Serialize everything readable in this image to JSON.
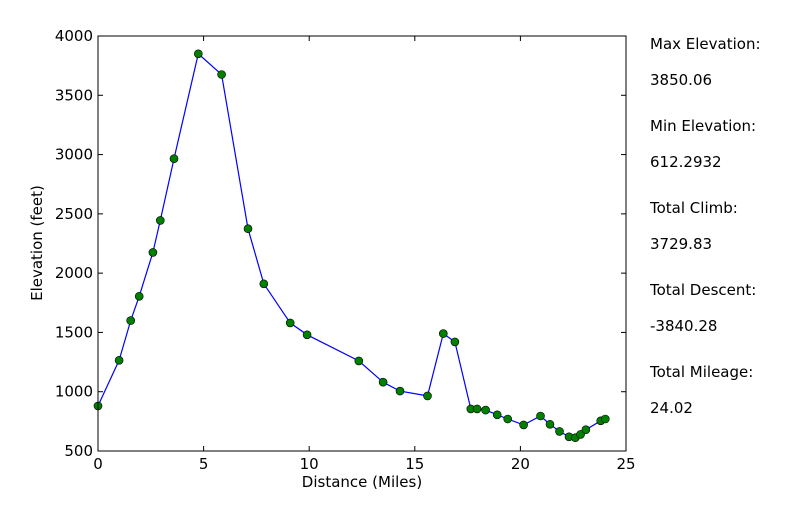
{
  "chart_data": {
    "type": "line",
    "title": "",
    "xlabel": "Distance (Miles)",
    "ylabel": "Elevation (feet)",
    "xlim": [
      0,
      25
    ],
    "ylim": [
      500,
      4000
    ],
    "x_ticks": [
      "0",
      "5",
      "10",
      "15",
      "20",
      "25"
    ],
    "y_ticks": [
      "500",
      "1000",
      "1500",
      "2000",
      "2500",
      "3000",
      "3500",
      "4000"
    ],
    "grid": false,
    "line_color": "#0000ff",
    "marker_color": "#008000",
    "series": [
      {
        "x": [
          0,
          1,
          1.55,
          1.95,
          2.6,
          2.95,
          3.6,
          4.75,
          5.85,
          7.1,
          7.85,
          9.1,
          9.9,
          12.35,
          13.5,
          14.3,
          15.6,
          16.35,
          16.9,
          17.65,
          17.95,
          18.35,
          18.9,
          19.4,
          20.15,
          20.95,
          21.4,
          21.85,
          22.3,
          22.6,
          22.85,
          23.1,
          23.8,
          24.02
        ],
        "y": [
          880,
          1265,
          1600,
          1805,
          2175,
          2445,
          2965,
          3850,
          3675,
          2375,
          1910,
          1580,
          1480,
          1260,
          1080,
          1005,
          965,
          1490,
          1420,
          855,
          855,
          845,
          805,
          770,
          720,
          795,
          725,
          665,
          620,
          612,
          640,
          680,
          755,
          770
        ]
      }
    ]
  },
  "stats": [
    {
      "label": "Max Elevation:",
      "value": "3850.06"
    },
    {
      "label": "Min Elevation:",
      "value": "612.2932"
    },
    {
      "label": "Total Climb:",
      "value": "3729.83"
    },
    {
      "label": "Total Descent:",
      "value": "-3840.28"
    },
    {
      "label": "Total Mileage:",
      "value": "24.02"
    }
  ]
}
